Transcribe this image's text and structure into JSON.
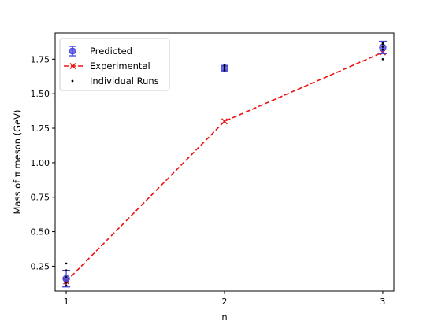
{
  "chart_data": {
    "type": "line",
    "xlabel": "n",
    "ylabel": "Mass of π meson (GeV)",
    "x": [
      1,
      2,
      3
    ],
    "xlim": [
      0.93,
      3.07
    ],
    "ylim": [
      0.07,
      1.94
    ],
    "x_ticks": [
      1,
      2,
      3
    ],
    "y_ticks": [
      0.25,
      0.5,
      0.75,
      1.0,
      1.25,
      1.5,
      1.75
    ],
    "y_tick_labels": [
      "0.25",
      "0.50",
      "0.75",
      "1.00",
      "1.25",
      "1.50",
      "1.75"
    ],
    "legend_position": "upper-left",
    "grid": false,
    "series": [
      {
        "name": "Predicted",
        "kind": "errorbar",
        "color": "#4040e0",
        "values": [
          0.16,
          1.685,
          1.835
        ],
        "errors": [
          0.06,
          0.02,
          0.045
        ]
      },
      {
        "name": "Experimental",
        "kind": "dashed-line-x-markers",
        "color": "#ee1111",
        "values": [
          0.14,
          1.3,
          1.8
        ]
      },
      {
        "name": "Individual Runs",
        "kind": "scatter-dots",
        "color": "#000000",
        "points": [
          [
            1,
            0.27
          ],
          [
            1,
            0.22
          ],
          [
            1,
            0.17
          ],
          [
            1,
            0.13
          ],
          [
            1,
            0.11
          ],
          [
            2,
            1.7
          ],
          [
            2,
            1.71
          ],
          [
            2,
            1.69
          ],
          [
            2,
            1.675
          ],
          [
            2,
            1.67
          ],
          [
            3,
            1.75
          ],
          [
            3,
            1.82
          ],
          [
            3,
            1.84
          ],
          [
            3,
            1.86
          ],
          [
            3,
            1.87
          ]
        ]
      }
    ]
  }
}
